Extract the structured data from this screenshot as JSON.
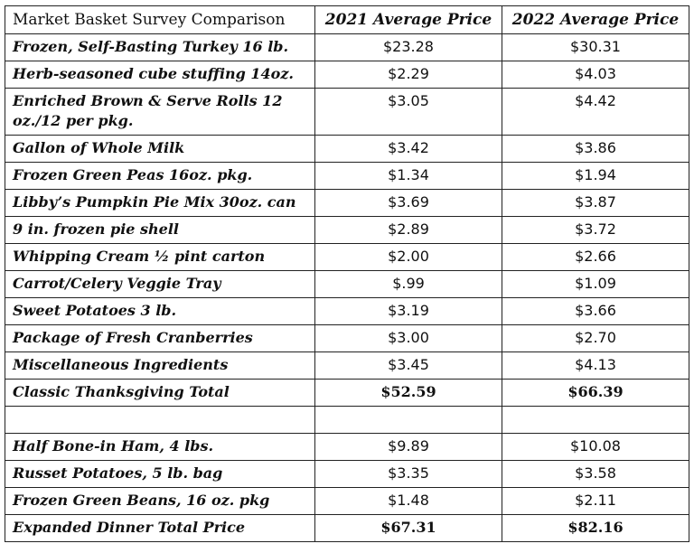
{
  "header": {
    "label": "Market Basket Survey Comparison",
    "col_2021": "2021 Average Price",
    "col_2022": "2022 Average Price"
  },
  "classic_rows": [
    {
      "item": "Frozen, Self-Basting Turkey 16 lb.",
      "p2021": "$23.28",
      "p2022": "$30.31"
    },
    {
      "item": "Herb-seasoned cube stuffing 14oz.",
      "p2021": "$2.29",
      "p2022": "$4.03"
    },
    {
      "item": "Enriched Brown & Serve Rolls 12 oz./12 per pkg.",
      "p2021": "$3.05",
      "p2022": "$4.42"
    },
    {
      "item": "Gallon of Whole Milk",
      "p2021": "$3.42",
      "p2022": "$3.86"
    },
    {
      "item": "Frozen Green Peas 16oz. pkg.",
      "p2021": "$1.34",
      "p2022": "$1.94"
    },
    {
      "item": "Libby’s Pumpkin Pie Mix 30oz. can",
      "p2021": "$3.69",
      "p2022": "$3.87"
    },
    {
      "item": "9 in. frozen pie shell",
      "p2021": "$2.89",
      "p2022": "$3.72"
    },
    {
      "item": "Whipping Cream ½ pint carton",
      "p2021": "$2.00",
      "p2022": "$2.66"
    },
    {
      "item": "Carrot/Celery Veggie Tray",
      "p2021": "$.99",
      "p2022": "$1.09"
    },
    {
      "item": "Sweet Potatoes 3 lb.",
      "p2021": "$3.19",
      "p2022": "$3.66"
    },
    {
      "item": "Package of Fresh Cranberries",
      "p2021": "$3.00",
      "p2022": "$2.70"
    },
    {
      "item": "Miscellaneous Ingredients",
      "p2021": "$3.45",
      "p2022": "$4.13"
    }
  ],
  "classic_total": {
    "item": "Classic Thanksgiving Total",
    "p2021": "$52.59",
    "p2022": "$66.39"
  },
  "expanded_rows": [
    {
      "item": "Half Bone-in Ham, 4 lbs.",
      "p2021": "$9.89",
      "p2022": "$10.08"
    },
    {
      "item": "Russet Potatoes, 5 lb. bag",
      "p2021": "$3.35",
      "p2022": "$3.58"
    },
    {
      "item": "Frozen Green Beans, 16 oz. pkg",
      "p2021": "$1.48",
      "p2022": "$2.11"
    }
  ],
  "expanded_total": {
    "item": "Expanded Dinner Total Price",
    "p2021": "$67.31",
    "p2022": "$82.16"
  }
}
